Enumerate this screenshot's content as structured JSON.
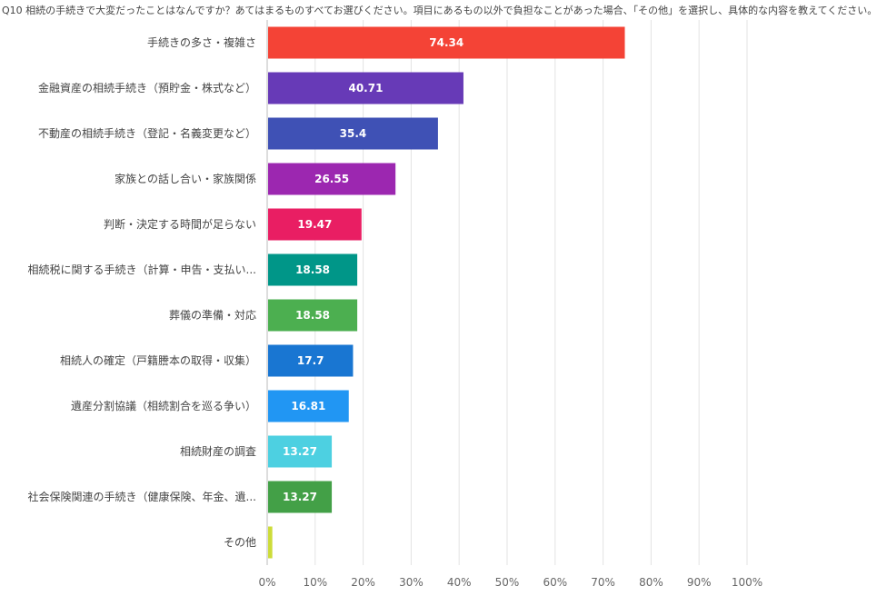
{
  "chart_data": {
    "type": "bar",
    "orientation": "horizontal",
    "title": "Q10 相続の手続きで大変だったことはなんですか？あてはまるものすべてお選びください。項目にあるもの以外で負担なことがあった場合、「その他」を選択し、具体的な内容を教えてください。",
    "categories": [
      "手続きの多さ・複雑さ",
      "金融資産の相続手続き（預貯金・株式など）",
      "不動産の相続手続き（登記・名義変更など）",
      "家族との話し合い・家族関係",
      "判断・決定する時間が足らない",
      "相続税に関する手続き（計算・申告・支払い...",
      "葬儀の準備・対応",
      "相続人の確定（戸籍謄本の取得・収集）",
      "遺産分割協議（相続割合を巡る争い）",
      "相続財産の調査",
      "社会保険関連の手続き（健康保険、年金、遺...",
      "その他"
    ],
    "values": [
      74.34,
      40.71,
      35.4,
      26.55,
      19.47,
      18.58,
      18.58,
      17.7,
      16.81,
      13.27,
      13.27,
      0.88
    ],
    "value_labels": [
      "74.34",
      "40.71",
      "35.4",
      "26.55",
      "19.47",
      "18.58",
      "18.58",
      "17.7",
      "16.81",
      "13.27",
      "13.27",
      ""
    ],
    "colors": [
      "#f44336",
      "#673ab7",
      "#3f51b5",
      "#9c27b0",
      "#e91e63",
      "#009688",
      "#4caf50",
      "#1976d2",
      "#2196f3",
      "#4dd0e1",
      "#43a047",
      "#cddc39"
    ],
    "xlim": [
      0,
      100
    ],
    "xticks": [
      "0%",
      "10%",
      "20%",
      "30%",
      "40%",
      "50%",
      "60%",
      "70%",
      "80%",
      "90%",
      "100%"
    ],
    "grid": true,
    "xlabel": "",
    "ylabel": ""
  }
}
